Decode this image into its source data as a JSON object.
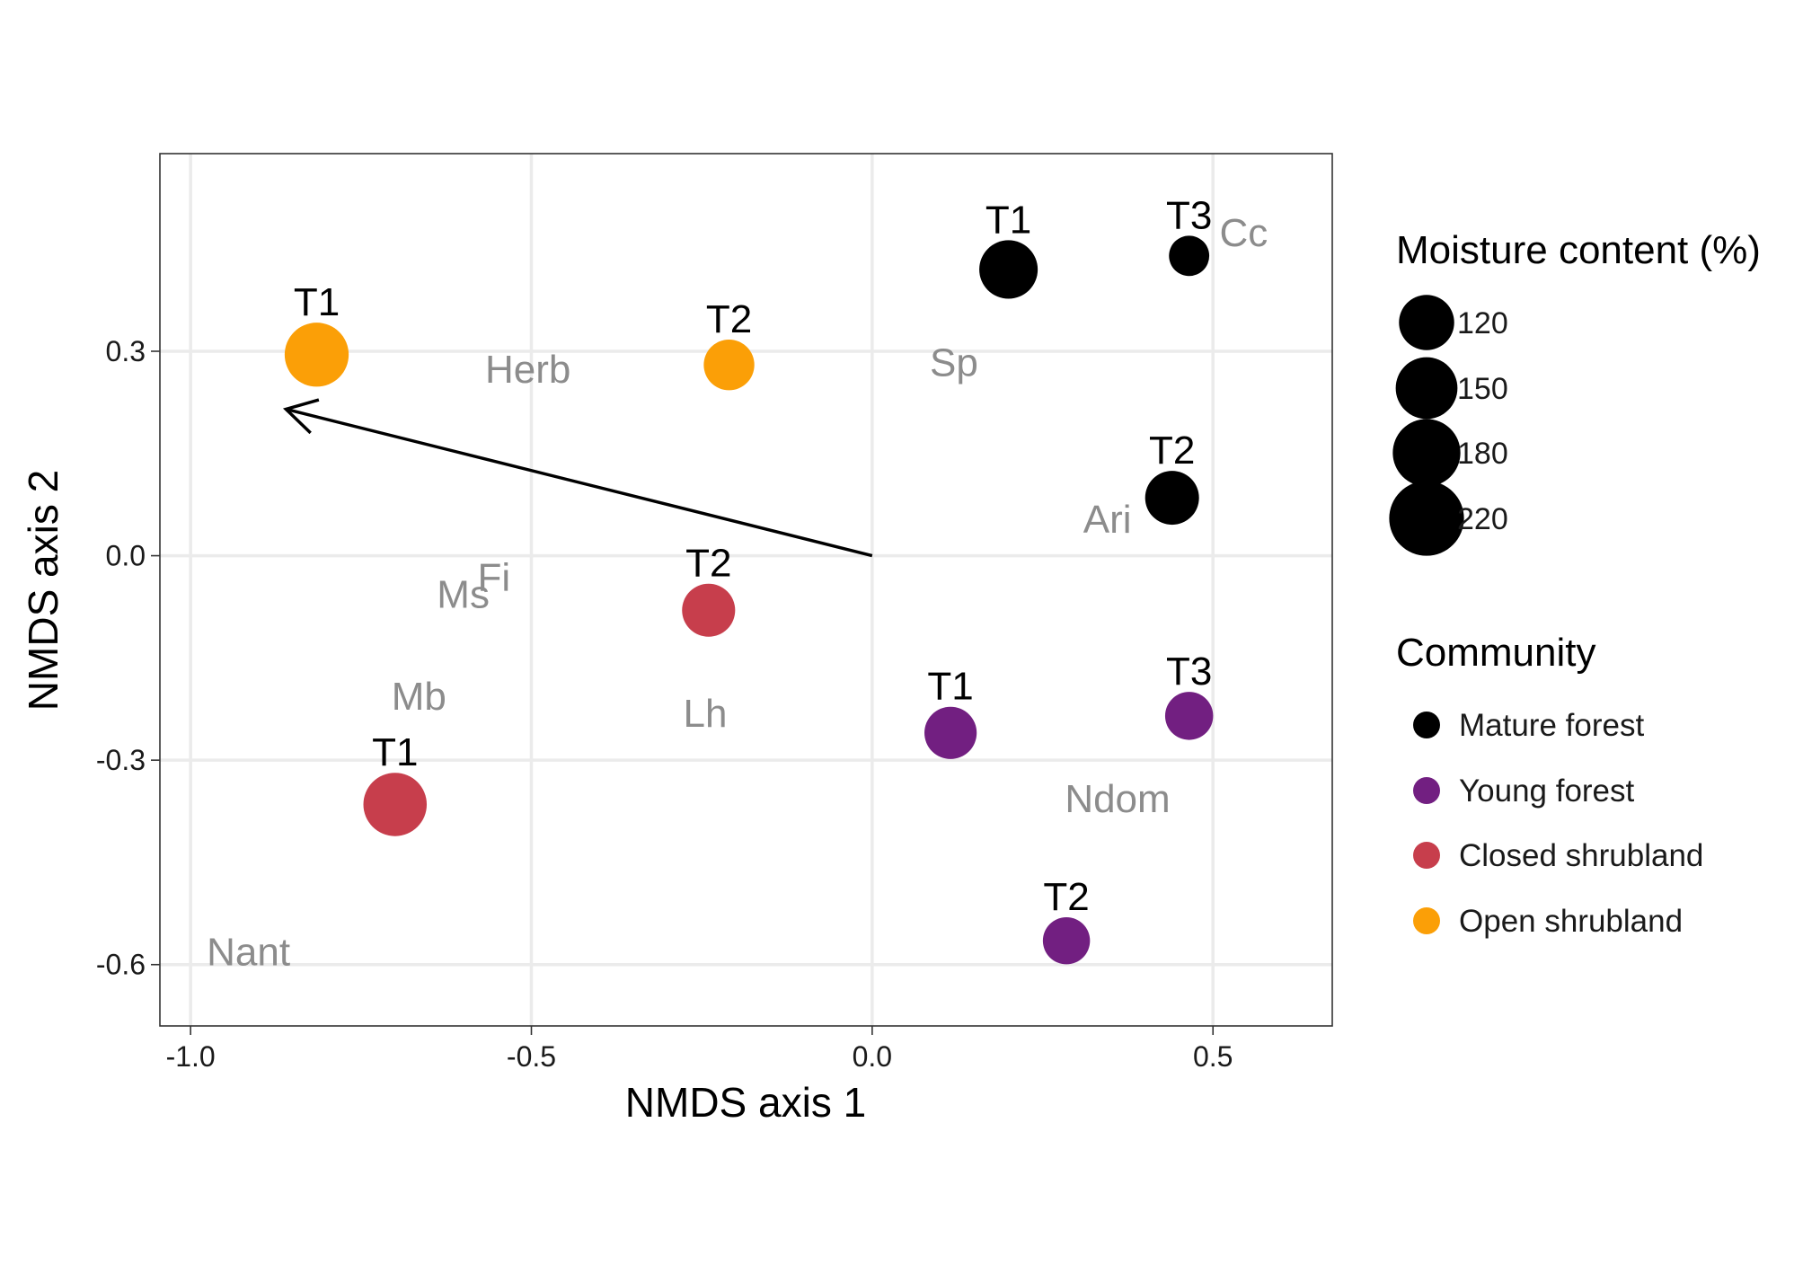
{
  "chart_data": {
    "type": "scatter",
    "xlabel": "NMDS axis 1",
    "ylabel": "NMDS axis 2",
    "xlim": [
      -1.045,
      0.675
    ],
    "ylim": [
      -0.69,
      0.59
    ],
    "x_ticks": [
      -1.0,
      -0.5,
      0.0,
      0.5
    ],
    "x_tick_labels": [
      "-1.0",
      "-0.5",
      "0.0",
      "0.5"
    ],
    "y_ticks": [
      0.3,
      0.0,
      -0.3,
      -0.6
    ],
    "y_tick_labels": [
      "0.3",
      "0.0",
      "-0.3",
      "-0.6"
    ],
    "grid": true,
    "panel_border": true,
    "series": [
      {
        "name": "Mature forest",
        "color": "#000000",
        "points": [
          {
            "label": "T1",
            "x": 0.2,
            "y": 0.42,
            "moisture": 200
          },
          {
            "label": "T2",
            "x": 0.44,
            "y": 0.085,
            "moisture": 170
          },
          {
            "label": "T3",
            "x": 0.465,
            "y": 0.44,
            "moisture": 95
          }
        ]
      },
      {
        "name": "Young forest",
        "color": "#721f81",
        "points": [
          {
            "label": "T1",
            "x": 0.115,
            "y": -0.26,
            "moisture": 160
          },
          {
            "label": "T2",
            "x": 0.285,
            "y": -0.565,
            "moisture": 130
          },
          {
            "label": "T3",
            "x": 0.465,
            "y": -0.235,
            "moisture": 135
          }
        ]
      },
      {
        "name": "Closed shrubland",
        "color": "#c73e4c",
        "points": [
          {
            "label": "T1",
            "x": -0.7,
            "y": -0.365,
            "moisture": 235
          },
          {
            "label": "T2",
            "x": -0.24,
            "y": -0.08,
            "moisture": 165
          }
        ]
      },
      {
        "name": "Open shrubland",
        "color": "#fb9f07",
        "points": [
          {
            "label": "T1",
            "x": -0.815,
            "y": 0.295,
            "moisture": 240
          },
          {
            "label": "T2",
            "x": -0.21,
            "y": 0.28,
            "moisture": 150
          }
        ]
      }
    ],
    "species_labels": [
      {
        "text": "Cc",
        "x": 0.545,
        "y": 0.475
      },
      {
        "text": "Herb",
        "x": -0.505,
        "y": 0.275
      },
      {
        "text": "Sp",
        "x": 0.12,
        "y": 0.285
      },
      {
        "text": "Ari",
        "x": 0.345,
        "y": 0.055
      },
      {
        "text": "Fi",
        "x": -0.555,
        "y": -0.03
      },
      {
        "text": "Ms",
        "x": -0.6,
        "y": -0.055
      },
      {
        "text": "Mb",
        "x": -0.665,
        "y": -0.205
      },
      {
        "text": "Lh",
        "x": -0.245,
        "y": -0.23
      },
      {
        "text": "Ndom",
        "x": 0.36,
        "y": -0.355
      },
      {
        "text": "Nant",
        "x": -0.915,
        "y": -0.58
      }
    ],
    "arrow": {
      "from": [
        0.0,
        0.0
      ],
      "to": [
        -0.86,
        0.215
      ]
    },
    "legend_size": {
      "title": "Moisture content (%)",
      "entries": [
        {
          "label": "120",
          "value": 120
        },
        {
          "label": "150",
          "value": 150
        },
        {
          "label": "180",
          "value": 180
        },
        {
          "label": "220",
          "value": 220
        }
      ],
      "placement": "right"
    },
    "legend_color": {
      "title": "Community",
      "entries": [
        "Mature forest",
        "Young forest",
        "Closed shrubland",
        "Open shrubland"
      ],
      "placement": "right"
    },
    "colors": {
      "grid": "#ebebeb",
      "panel_border": "#333333",
      "species_text": "#8c8c8c",
      "point_label": "#000000"
    }
  }
}
